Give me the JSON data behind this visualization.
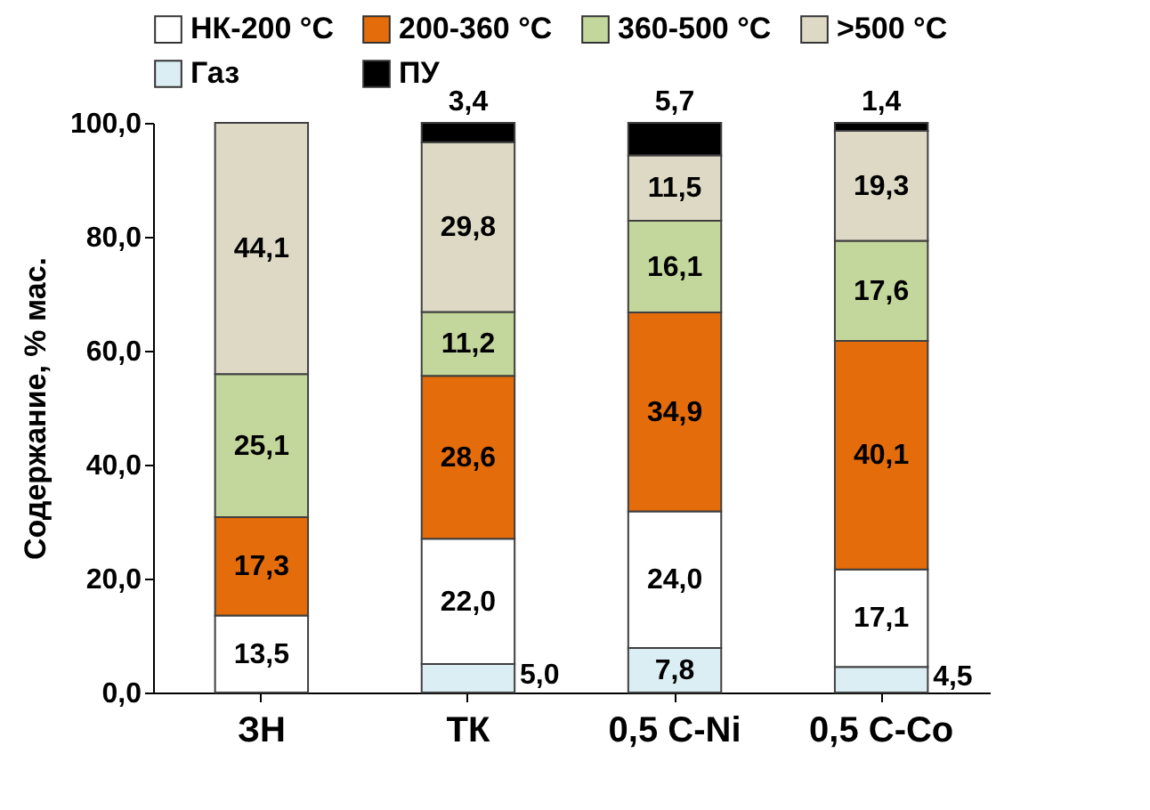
{
  "chart_data": {
    "type": "bar",
    "stacked": true,
    "ylabel": "Содержание, % мас.",
    "categories": [
      "ЗН",
      "ТК",
      "0,5 С-Ni",
      "0,5 С-Co"
    ],
    "series": [
      {
        "name": "Газ",
        "color": "#dbeef4",
        "values": [
          null,
          5.0,
          7.8,
          4.5
        ],
        "value_labels": [
          null,
          "5,0",
          "7,8",
          "4,5"
        ]
      },
      {
        "name": "НК-200 °С",
        "color": "#ffffff",
        "values": [
          13.5,
          22.0,
          24.0,
          17.1
        ],
        "value_labels": [
          "13,5",
          "22,0",
          "24,0",
          "17,1"
        ]
      },
      {
        "name": "200-360 °С",
        "color": "#e46c0a",
        "values": [
          17.3,
          28.6,
          34.9,
          40.1
        ],
        "value_labels": [
          "17,3",
          "28,6",
          "34,9",
          "40,1"
        ]
      },
      {
        "name": "360-500 °С",
        "color": "#c3d69b",
        "values": [
          25.1,
          11.2,
          16.1,
          17.6
        ],
        "value_labels": [
          "25,1",
          "11,2",
          "16,1",
          "17,6"
        ]
      },
      {
        "name": ">500 °С",
        "color": "#ddd9c4",
        "values": [
          44.1,
          29.8,
          11.5,
          19.3
        ],
        "value_labels": [
          "44,1",
          "29,8",
          "11,5",
          "19,3"
        ]
      },
      {
        "name": "ПУ",
        "color": "#000000",
        "values": [
          null,
          3.4,
          5.7,
          1.4
        ],
        "value_labels": [
          null,
          "3,4",
          "5,7",
          "1,4"
        ]
      }
    ],
    "ylim": [
      0,
      100
    ],
    "yticks": [
      {
        "value": 0,
        "label": "0,0"
      },
      {
        "value": 20,
        "label": "20,0"
      },
      {
        "value": 40,
        "label": "40,0"
      },
      {
        "value": 60,
        "label": "60,0"
      },
      {
        "value": 80,
        "label": "80,0"
      },
      {
        "value": 100,
        "label": "100,0"
      }
    ],
    "grid": false,
    "legend": "top"
  }
}
